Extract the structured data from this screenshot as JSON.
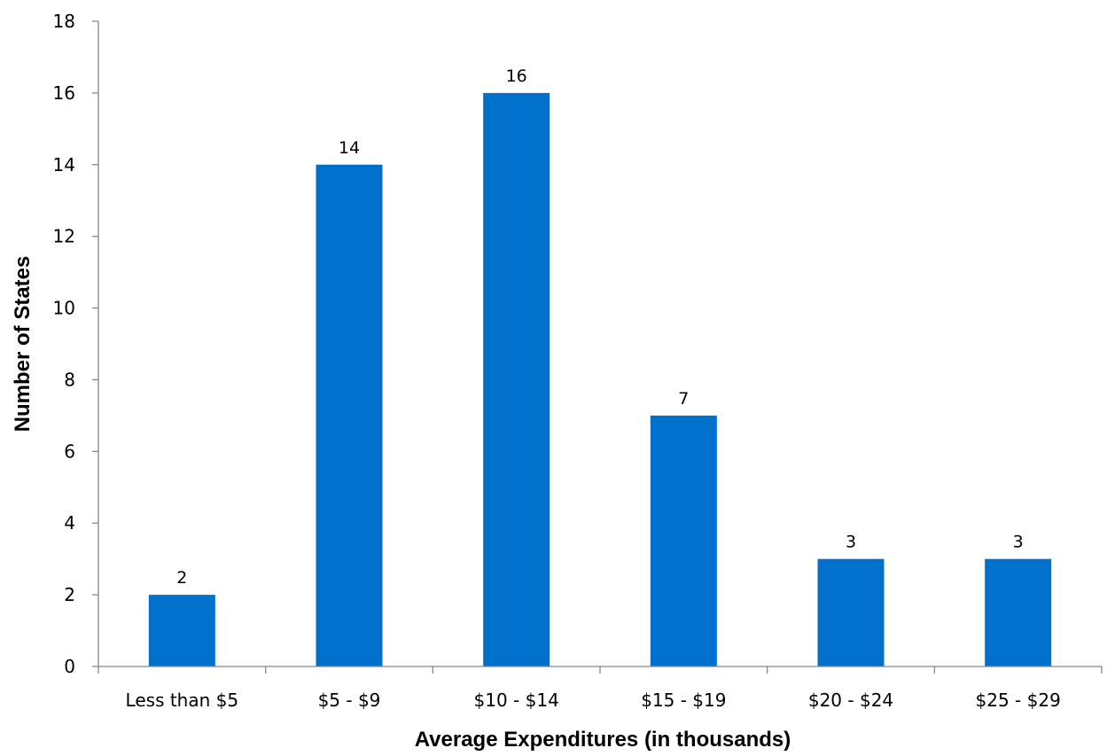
{
  "chart_data": {
    "type": "bar",
    "title": "",
    "xlabel": "Average Expenditures (in thousands)",
    "ylabel": "Number of States",
    "categories": [
      "Less than $5",
      "$5 - $9",
      "$10 - $14",
      "$15 - $19",
      "$20 - $24",
      "$25 - $29"
    ],
    "series": [
      {
        "values": [
          2,
          14,
          16,
          7,
          3,
          3
        ]
      }
    ],
    "data_labels": [
      "2",
      "14",
      "16",
      "7",
      "3",
      "3"
    ],
    "ylim": [
      0,
      18
    ],
    "yticks": [
      0,
      2,
      4,
      6,
      8,
      10,
      12,
      14,
      16,
      18
    ],
    "ytick_labels": [
      "0",
      "2",
      "4",
      "6",
      "8",
      "10",
      "12",
      "14",
      "16",
      "18"
    ],
    "grid": false,
    "legend": "none",
    "bar_color": "#0070CD"
  }
}
